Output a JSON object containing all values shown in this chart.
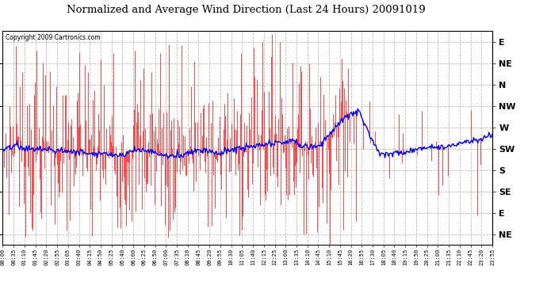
{
  "title": "Normalized and Average Wind Direction (Last 24 Hours) 20091019",
  "copyright": "Copyright 2009 Cartronics.com",
  "background_color": "#ffffff",
  "plot_bg_color": "#ffffff",
  "grid_color": "#bbbbbb",
  "red_color": "#ff0000",
  "blue_color": "#0000ff",
  "x_labels": [
    "00:00",
    "00:35",
    "01:10",
    "01:45",
    "02:20",
    "02:55",
    "03:05",
    "03:40",
    "04:15",
    "04:50",
    "05:25",
    "05:40",
    "06:00",
    "06:25",
    "06:50",
    "07:00",
    "07:35",
    "08:10",
    "08:45",
    "09:20",
    "09:55",
    "10:30",
    "11:05",
    "11:40",
    "12:15",
    "12:25",
    "13:00",
    "13:35",
    "14:10",
    "14:45",
    "15:10",
    "15:45",
    "16:20",
    "16:55",
    "17:30",
    "18:05",
    "18:40",
    "19:15",
    "19:50",
    "20:25",
    "21:00",
    "21:35",
    "22:10",
    "22:45",
    "23:20",
    "23:55"
  ],
  "y_labels": [
    "E",
    "NE",
    "N",
    "NW",
    "W",
    "SW",
    "S",
    "SE",
    "E",
    "NE"
  ],
  "y_values": [
    9,
    8,
    7,
    6,
    5,
    4,
    3,
    2,
    1,
    0
  ],
  "ylim": [
    -0.5,
    9.5
  ],
  "n_points": 576,
  "red_seed": 7,
  "blue_seed": 13
}
